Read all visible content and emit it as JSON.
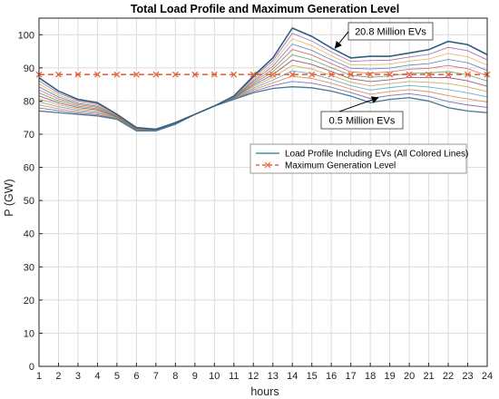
{
  "chart_data": {
    "type": "line",
    "title": "Total Load Profile and Maximum Generation Level",
    "xlabel": "hours",
    "ylabel": "P (GW)",
    "xlim": [
      1,
      24
    ],
    "ylim": [
      0,
      105
    ],
    "grid": true,
    "x": [
      1,
      2,
      3,
      4,
      5,
      6,
      7,
      8,
      9,
      10,
      11,
      12,
      13,
      14,
      15,
      16,
      17,
      18,
      19,
      20,
      21,
      22,
      23,
      24
    ],
    "xticks": [
      1,
      2,
      3,
      4,
      5,
      6,
      7,
      8,
      9,
      10,
      11,
      12,
      13,
      14,
      15,
      16,
      17,
      18,
      19,
      20,
      21,
      22,
      23,
      24
    ],
    "yticks": [
      0,
      10,
      20,
      30,
      40,
      50,
      60,
      70,
      80,
      90,
      100
    ],
    "band_count": 12,
    "band_colors": [
      "#3d6b8a",
      "#6a5aa8",
      "#e07b39",
      "#4aa3c9",
      "#c9a23a",
      "#8c3b6b",
      "#5a9e5a",
      "#d35a5a",
      "#4a7ab8",
      "#e8b04a",
      "#a05ab0",
      "#4ab0a0"
    ],
    "series": [
      {
        "name": "",
        "description_label": "0.5 Million EVs",
        "color": "#4a7a96",
        "values": [
          77.0,
          76.5,
          76.0,
          75.5,
          74.5,
          71.0,
          71.0,
          73.0,
          76.0,
          78.5,
          80.5,
          82.5,
          83.8,
          84.3,
          84.0,
          83.0,
          81.5,
          79.5,
          80.5,
          81.0,
          80.0,
          78.0,
          77.0,
          76.5
        ]
      },
      {
        "name": "",
        "description_label": "20.8 Million EVs",
        "color": "#2f5f7f",
        "values": [
          87.0,
          83.0,
          80.5,
          79.5,
          76.0,
          72.0,
          71.5,
          73.5,
          76.0,
          78.5,
          81.5,
          87.5,
          93.0,
          102.0,
          99.5,
          96.0,
          93.0,
          93.5,
          93.5,
          94.5,
          95.5,
          98.0,
          97.0,
          94.0
        ]
      },
      {
        "name": "Maximum Generation Level",
        "color": "#e8643c",
        "values": [
          88,
          88,
          88,
          88,
          88,
          88,
          88,
          88,
          88,
          88,
          88,
          88,
          88,
          88,
          88,
          88,
          88,
          88,
          88,
          88,
          88,
          88,
          88,
          88
        ]
      }
    ],
    "legend": {
      "placement": "center-right",
      "entries": [
        {
          "label": "Load Profile Including EVs (All Colored Lines)",
          "color": "#4a90a0",
          "style": "solid"
        },
        {
          "label": "Maximum Generation Level",
          "color": "#e8643c",
          "style": "dashed-x"
        }
      ]
    },
    "annotations": [
      {
        "text": "20.8 Million EVs",
        "arrow_to_x": 16.2,
        "arrow_to_y": 96.0
      },
      {
        "text": "0.5 Million EVs",
        "arrow_to_x": 18.4,
        "arrow_to_y": 81.0
      }
    ]
  }
}
